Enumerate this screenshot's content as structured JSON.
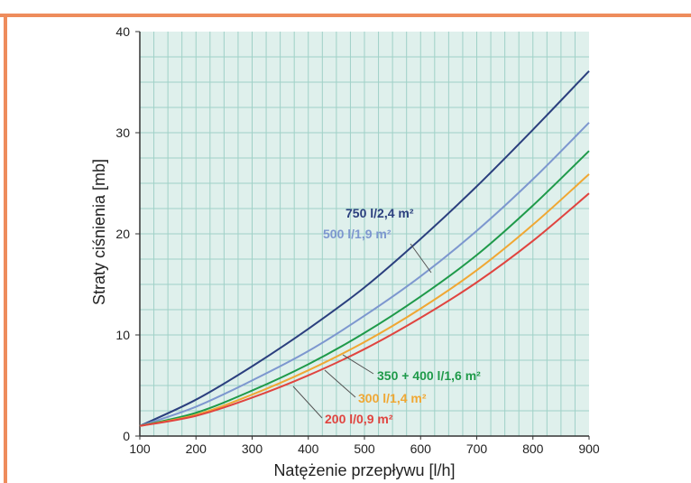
{
  "chart_data": {
    "type": "line",
    "title": "",
    "xlabel": "Natężenie przepływu [l/h]",
    "ylabel": "Straty ciśnienia [mb]",
    "xlim": [
      100,
      900
    ],
    "ylim": [
      0,
      40
    ],
    "x_ticks": [
      "100",
      "200",
      "300",
      "400",
      "500",
      "600",
      "700",
      "800",
      "900"
    ],
    "y_ticks": [
      "0",
      "10",
      "20",
      "30",
      "40"
    ],
    "grid": true,
    "x": [
      100,
      200,
      300,
      400,
      500,
      600,
      700,
      800,
      900
    ],
    "series": [
      {
        "name": "750 l/2,4 m²",
        "color": "#2b3f7e",
        "values": [
          1.0,
          3.6,
          6.9,
          10.6,
          14.7,
          19.5,
          24.7,
          30.3,
          36.1
        ]
      },
      {
        "name": "500 l/1,9 m²",
        "color": "#7d97cf",
        "values": [
          1.0,
          2.9,
          5.5,
          8.4,
          11.9,
          15.8,
          20.3,
          25.4,
          31.0
        ]
      },
      {
        "name": "350 + 400 l/1,6 m²",
        "color": "#1f9a4a",
        "values": [
          1.0,
          2.3,
          4.5,
          7.1,
          10.2,
          13.8,
          17.9,
          22.8,
          28.2
        ]
      },
      {
        "name": "300 l/1,4 m²",
        "color": "#f0a733",
        "values": [
          1.0,
          2.1,
          4.1,
          6.5,
          9.3,
          12.6,
          16.4,
          20.9,
          25.9
        ]
      },
      {
        "name": "200 l/0,9 m²",
        "color": "#e0443f",
        "values": [
          1.0,
          2.0,
          3.8,
          6.0,
          8.6,
          11.7,
          15.2,
          19.3,
          24.0
        ]
      }
    ]
  },
  "colors": {
    "frame": "#ee8c5c",
    "plot_background": "#dff0ec",
    "grid": "#9fd1c7"
  }
}
